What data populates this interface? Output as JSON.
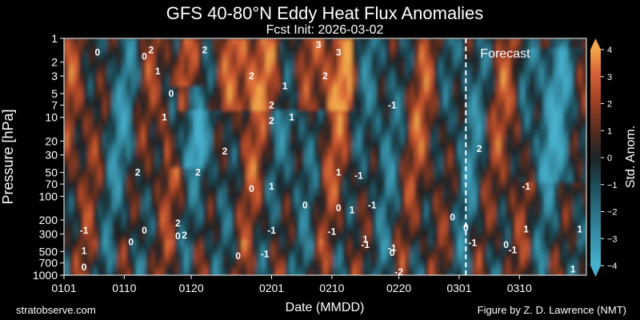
{
  "chart_data": {
    "type": "heatmap",
    "title": "GFS 40-80°N Eddy Heat Flux Anomalies",
    "subtitle": "Fcst Init: 2026-03-02",
    "xlabel": "Date (MMDD)",
    "ylabel": "Pressure [hPa]",
    "x_ticks": [
      "0101",
      "0110",
      "0120",
      "0201",
      "0210",
      "0220",
      "0301",
      "0310"
    ],
    "y_ticks": [
      "1",
      "2",
      "3",
      "5",
      "7",
      "10",
      "20",
      "30",
      "50",
      "70",
      "100",
      "200",
      "300",
      "500",
      "700",
      "1000"
    ],
    "y_scale": "log",
    "ylim": [
      1000,
      1
    ],
    "forecast_label": "Forecast",
    "forecast_start": "0302",
    "colorbar": {
      "label": "Std. Anom.",
      "ticks": [
        "4",
        "3",
        "2",
        "1",
        "0",
        "−1",
        "−2",
        "−3",
        "−4"
      ],
      "range": [
        -4,
        4
      ],
      "colors": {
        "neg_max": "#3fa8c4",
        "zero": "#1b2a30",
        "pos_mid": "#a7492b",
        "pos_max": "#f0a050"
      }
    },
    "contour_labels": [
      {
        "text": "0",
        "date": "0106",
        "p": 1.5
      },
      {
        "text": "0",
        "date": "0113",
        "p": 1.7
      },
      {
        "text": "2",
        "date": "0114",
        "p": 1.4
      },
      {
        "text": "1",
        "date": "0115",
        "p": 2.6
      },
      {
        "text": "2",
        "date": "0122",
        "p": 1.4
      },
      {
        "text": "0",
        "date": "0117",
        "p": 5
      },
      {
        "text": "1",
        "date": "0116",
        "p": 10
      },
      {
        "text": "2",
        "date": "0129",
        "p": 3
      },
      {
        "text": "1",
        "date": "0203",
        "p": 4
      },
      {
        "text": "2",
        "date": "0201",
        "p": 7
      },
      {
        "text": "2",
        "date": "0201",
        "p": 11
      },
      {
        "text": "1",
        "date": "0204",
        "p": 10
      },
      {
        "text": "3",
        "date": "0208",
        "p": 1.2
      },
      {
        "text": "3",
        "date": "0211",
        "p": 1.5
      },
      {
        "text": "2",
        "date": "0209",
        "p": 3
      },
      {
        "text": "-1",
        "date": "0219",
        "p": 7
      },
      {
        "text": "2",
        "date": "0125",
        "p": 27
      },
      {
        "text": "2",
        "date": "0112",
        "p": 50
      },
      {
        "text": "2",
        "date": "0121",
        "p": 50
      },
      {
        "text": "0",
        "date": "0129",
        "p": 80
      },
      {
        "text": "1",
        "date": "0201",
        "p": 75
      },
      {
        "text": "1",
        "date": "0211",
        "p": 50
      },
      {
        "text": "-1",
        "date": "0214",
        "p": 55
      },
      {
        "text": "0",
        "date": "0206",
        "p": 130
      },
      {
        "text": "0",
        "date": "0211",
        "p": 140
      },
      {
        "text": "1",
        "date": "0213",
        "p": 150
      },
      {
        "text": "-1",
        "date": "0216",
        "p": 130
      },
      {
        "text": "0",
        "date": "0228",
        "p": 185
      },
      {
        "text": "2",
        "date": "0304",
        "p": 25
      },
      {
        "text": "-1",
        "date": "0311",
        "p": 75
      },
      {
        "text": "1",
        "date": "0311",
        "p": 260
      },
      {
        "text": "2",
        "date": "0118",
        "p": 220
      },
      {
        "text": "0",
        "date": "0113",
        "p": 270
      },
      {
        "text": "-1",
        "date": "0104",
        "p": 270
      },
      {
        "text": "1",
        "date": "0104",
        "p": 490
      },
      {
        "text": "0",
        "date": "0104",
        "p": 790
      },
      {
        "text": "0",
        "date": "0111",
        "p": 380
      },
      {
        "text": "0",
        "date": "0118",
        "p": 320
      },
      {
        "text": "2",
        "date": "0119",
        "p": 310
      },
      {
        "text": "0",
        "date": "0127",
        "p": 570
      },
      {
        "text": "-1",
        "date": "0131",
        "p": 540
      },
      {
        "text": "-1",
        "date": "0201",
        "p": 270
      },
      {
        "text": "-1",
        "date": "0210",
        "p": 280
      },
      {
        "text": "-1",
        "date": "0215",
        "p": 410
      },
      {
        "text": "1",
        "date": "0215",
        "p": 350
      },
      {
        "text": "-1",
        "date": "0219",
        "p": 450
      },
      {
        "text": "-2",
        "date": "0220",
        "p": 910
      },
      {
        "text": "0",
        "date": "0219",
        "p": 520
      },
      {
        "text": "-1",
        "date": "0303",
        "p": 390
      },
      {
        "text": "0",
        "date": "0302",
        "p": 250
      },
      {
        "text": "-1",
        "date": "0309",
        "p": 480
      },
      {
        "text": "0",
        "date": "0308",
        "p": 410
      },
      {
        "text": "1",
        "date": "0318",
        "p": 840
      },
      {
        "text": "1",
        "date": "0319",
        "p": 260
      }
    ]
  },
  "footer": {
    "left": "stratobserve.com",
    "right": "Figure by Z. D. Lawrence (NMT)"
  }
}
